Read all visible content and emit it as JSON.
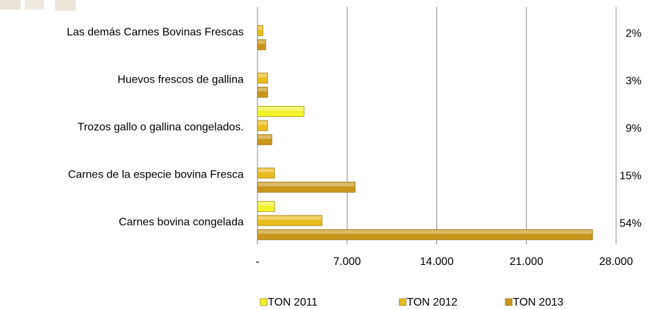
{
  "chart_data": {
    "type": "bar",
    "orientation": "horizontal",
    "categories": [
      "Las demás Carnes Bovinas Frescas",
      "Huevos frescos de gallina",
      "Trozos gallo o gallina congelados.",
      "Carnes de la especie bovina Fresca",
      "Carnes bovina congelada"
    ],
    "series": [
      {
        "name": "TON 2011",
        "color": "#f2f22a",
        "values": [
          null,
          null,
          3650,
          null,
          1340
        ]
      },
      {
        "name": "TON 2012",
        "color": "#e8bc1c",
        "values": [
          430,
          800,
          800,
          1340,
          5050
        ]
      },
      {
        "name": "TON 2013",
        "color": "#c8961a",
        "values": [
          650,
          800,
          1130,
          7630,
          26170
        ]
      }
    ],
    "shares": [
      2,
      3,
      9,
      15,
      54
    ],
    "share_labels": [
      "2%",
      "3%",
      "9%",
      "15%",
      "54%"
    ],
    "xlim": [
      0,
      28000
    ],
    "xticks": [
      {
        "value": 0,
        "label": "-"
      },
      {
        "value": 7000,
        "label": "7.000"
      },
      {
        "value": 14000,
        "label": "14.000"
      },
      {
        "value": 21000,
        "label": "21.000"
      },
      {
        "value": 28000,
        "label": "28.000"
      }
    ],
    "grid": true,
    "legend": "bottom"
  }
}
